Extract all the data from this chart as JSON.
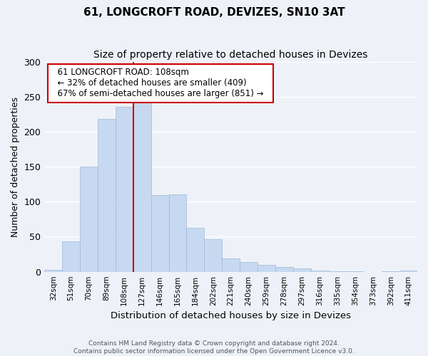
{
  "title": "61, LONGCROFT ROAD, DEVIZES, SN10 3AT",
  "subtitle": "Size of property relative to detached houses in Devizes",
  "xlabel": "Distribution of detached houses by size in Devizes",
  "ylabel": "Number of detached properties",
  "bar_labels": [
    "32sqm",
    "51sqm",
    "70sqm",
    "89sqm",
    "108sqm",
    "127sqm",
    "146sqm",
    "165sqm",
    "184sqm",
    "202sqm",
    "221sqm",
    "240sqm",
    "259sqm",
    "278sqm",
    "297sqm",
    "316sqm",
    "335sqm",
    "354sqm",
    "373sqm",
    "392sqm",
    "411sqm"
  ],
  "bar_values": [
    3,
    43,
    150,
    218,
    235,
    247,
    109,
    110,
    63,
    46,
    19,
    14,
    10,
    7,
    5,
    2,
    1,
    1,
    0,
    1,
    2
  ],
  "bar_color": "#c6d9f0",
  "bar_edge_color": "#a0b8d8",
  "vline_color": "#cc0000",
  "annotation_title": "61 LONGCROFT ROAD: 108sqm",
  "annotation_line1": "← 32% of detached houses are smaller (409)",
  "annotation_line2": "67% of semi-detached houses are larger (851) →",
  "annotation_box_color": "white",
  "annotation_box_edge": "#cc0000",
  "ylim": [
    0,
    300
  ],
  "yticks": [
    0,
    50,
    100,
    150,
    200,
    250,
    300
  ],
  "footer1": "Contains HM Land Registry data © Crown copyright and database right 2024.",
  "footer2": "Contains public sector information licensed under the Open Government Licence v3.0.",
  "background_color": "#eef2f8",
  "grid_color": "#ffffff",
  "figsize": [
    6.0,
    5.0
  ],
  "dpi": 100
}
